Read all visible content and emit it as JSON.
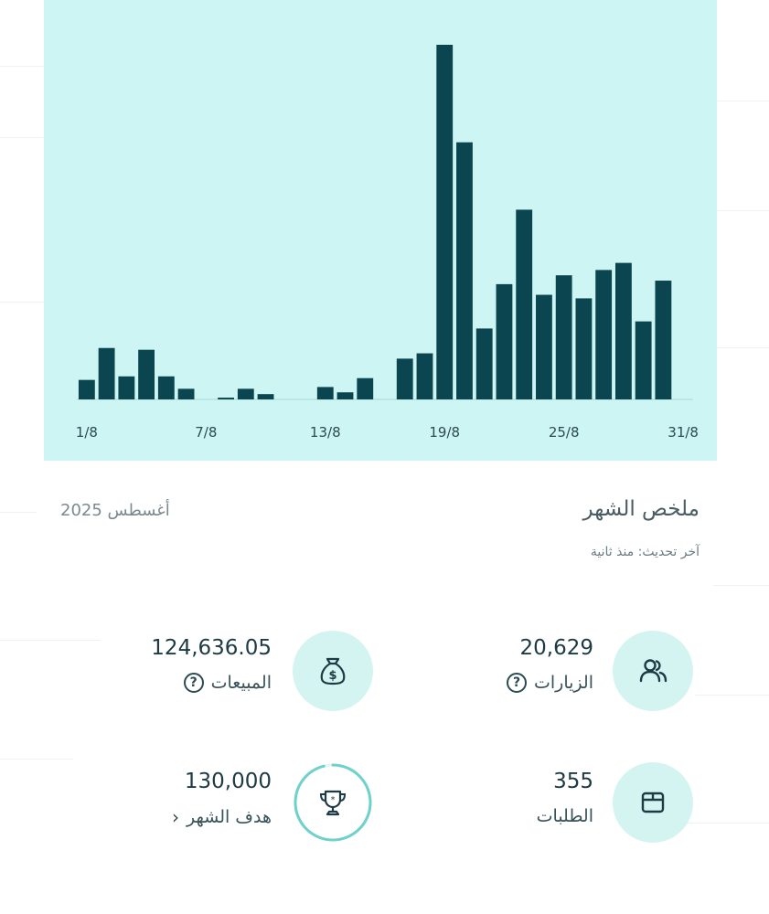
{
  "chart_data": {
    "type": "bar",
    "categories": [
      "1/8",
      "2/8",
      "3/8",
      "4/8",
      "5/8",
      "6/8",
      "7/8",
      "8/8",
      "9/8",
      "10/8",
      "11/8",
      "12/8",
      "13/8",
      "14/8",
      "15/8",
      "16/8",
      "17/8",
      "18/8",
      "19/8",
      "20/8",
      "21/8",
      "22/8",
      "23/8",
      "24/8",
      "25/8",
      "26/8",
      "27/8",
      "28/8",
      "29/8",
      "30/8",
      "31/8"
    ],
    "values": [
      5.5,
      14.5,
      6.5,
      14,
      6.5,
      3,
      0,
      0.5,
      3,
      1.5,
      0,
      0,
      3.5,
      2,
      6,
      0,
      11.5,
      13,
      100,
      72.5,
      20,
      32.5,
      53.5,
      29.5,
      35,
      28.5,
      36.5,
      38.5,
      22,
      33.5,
      0
    ],
    "tick_labels": [
      "1/8",
      "7/8",
      "13/8",
      "19/8",
      "25/8",
      "31/8"
    ],
    "ylim": [
      0,
      100
    ],
    "grid": false,
    "title": "",
    "xlabel": "",
    "ylabel": ""
  },
  "summary": {
    "title": "ملخص الشهر",
    "date": "أغسطس 2025",
    "updated": "آخر تحديث: منذ ثانية"
  },
  "stats": {
    "visits": {
      "value": "20,629",
      "label": "الزيارات",
      "icon": "users-icon"
    },
    "sales": {
      "value": "124,636.05",
      "label": "المبيعات",
      "icon": "money-bag-icon"
    },
    "orders": {
      "value": "355",
      "label": "الطلبات",
      "icon": "box-icon"
    },
    "goal": {
      "value": "130,000",
      "label": "هدف الشهر",
      "icon": "trophy-icon",
      "progress": 0.96
    }
  },
  "glyphs": {
    "help": "?",
    "chevron": "‹"
  },
  "colors": {
    "chart_bg": "#cdf5f3",
    "bar": "#0b4650",
    "circle_bg": "#d4f4f2",
    "accent": "#6fd1cb"
  }
}
